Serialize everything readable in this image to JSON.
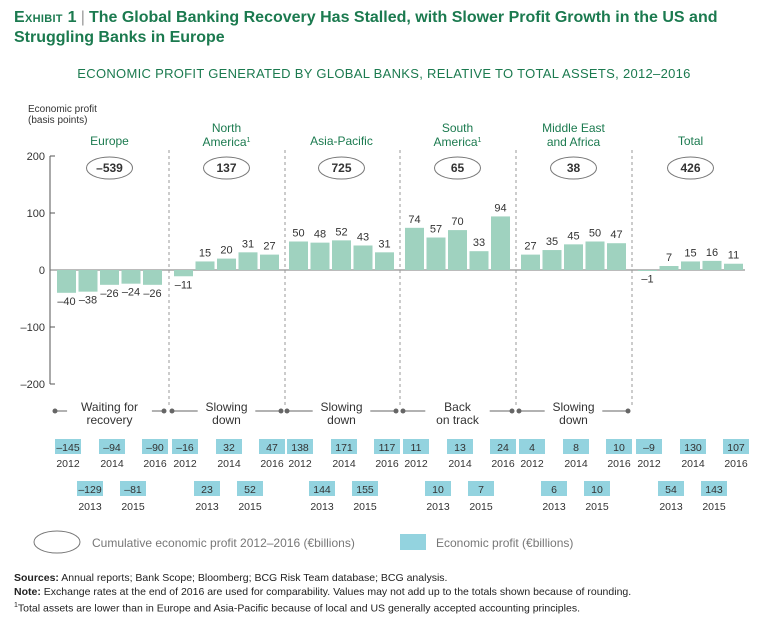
{
  "header": {
    "exhibit_label": "Exhibit 1",
    "title": "The Global Banking Recovery Has Stalled, with Slower Profit Growth in the US and Struggling Banks in Europe",
    "subtitle": "ECONOMIC PROFIT GENERATED BY GLOBAL BANKS, RELATIVE TO TOTAL ASSETS, 2012–2016"
  },
  "chart_data": {
    "type": "bar",
    "title": "ECONOMIC PROFIT GENERATED BY GLOBAL BANKS, RELATIVE TO TOTAL ASSETS, 2012–2016",
    "ylabel": "Economic profit (basis points)",
    "ylim": [
      -200,
      200
    ],
    "yticks": [
      200,
      100,
      0,
      -100,
      -200
    ],
    "years": [
      "2012",
      "2013",
      "2014",
      "2015",
      "2016"
    ],
    "colors": {
      "bar": "#9fd2bf",
      "box": "#93d3df",
      "title": "#1b7a4f",
      "text": "#333333"
    },
    "groups": [
      {
        "name": "Europe",
        "cumulative": "–539",
        "values": [
          -40,
          -38,
          -26,
          -24,
          -26
        ],
        "value_labels": [
          "–40",
          "–38",
          "–26",
          "–24",
          "–26"
        ],
        "trend": "Waiting for recovery",
        "billions": [
          "–145",
          "–129",
          "–94",
          "–81",
          "–90"
        ]
      },
      {
        "name": "North America",
        "footnote": "1",
        "cumulative": "137",
        "values": [
          -11,
          15,
          20,
          31,
          27
        ],
        "value_labels": [
          "–11",
          "15",
          "20",
          "31",
          "27"
        ],
        "trend": "Slowing down",
        "billions": [
          "–16",
          "23",
          "32",
          "52",
          "47"
        ]
      },
      {
        "name": "Asia-Pacific",
        "cumulative": "725",
        "values": [
          50,
          48,
          52,
          43,
          31
        ],
        "value_labels": [
          "50",
          "48",
          "52",
          "43",
          "31"
        ],
        "trend": "Slowing down",
        "billions": [
          "138",
          "144",
          "171",
          "155",
          "117"
        ]
      },
      {
        "name": "South America",
        "footnote": "1",
        "cumulative": "65",
        "values": [
          74,
          57,
          70,
          33,
          94
        ],
        "value_labels": [
          "74",
          "57",
          "70",
          "33",
          "94"
        ],
        "trend": "Back on track",
        "billions": [
          "11",
          "10",
          "13",
          "7",
          "24"
        ]
      },
      {
        "name": "Middle East and Africa",
        "cumulative": "38",
        "values": [
          27,
          35,
          45,
          50,
          47
        ],
        "value_labels": [
          "27",
          "35",
          "45",
          "50",
          "47"
        ],
        "trend": "Slowing down",
        "billions": [
          "4",
          "6",
          "8",
          "10",
          "10"
        ]
      },
      {
        "name": "Total",
        "cumulative": "426",
        "values": [
          -1,
          7,
          15,
          16,
          11
        ],
        "value_labels": [
          "–1",
          "7",
          "15",
          "16",
          "11"
        ],
        "trend": "",
        "billions": [
          "–9",
          "54",
          "130",
          "143",
          "107"
        ]
      }
    ],
    "legend": {
      "cumulative": "Cumulative economic profit 2012–2016 (€billions)",
      "annual": "Economic profit (€billions)"
    }
  },
  "footer": {
    "sources_label": "Sources:",
    "sources": "Annual reports; Bank Scope; Bloomberg; BCG Risk Team database; BCG analysis.",
    "note_label": "Note:",
    "note": "Exchange rates at the end of 2016 are used for comparability. Values may not add up to the totals shown because of rounding.",
    "footnote_mark": "1",
    "footnote": "Total assets are lower than in Europe and Asia-Pacific because of local and US generally accepted accounting principles."
  }
}
